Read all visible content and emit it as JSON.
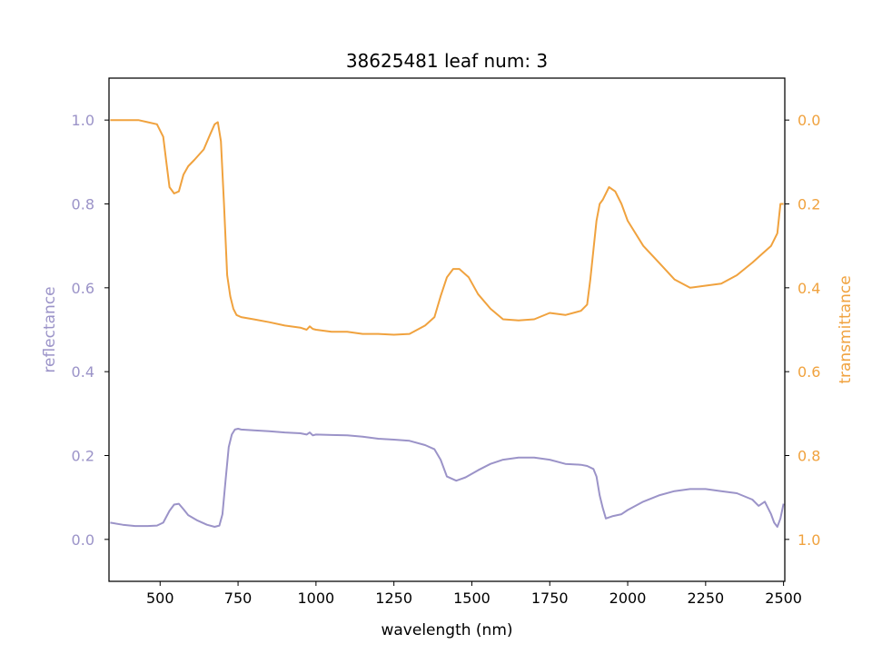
{
  "colors": {
    "reflectance": "#9b93c8",
    "transmittance": "#f0a23e",
    "axes": "#000000",
    "background": "#ffffff"
  },
  "chart_data": {
    "type": "line",
    "title": "38625481 leaf num: 3",
    "xlabel": "wavelength (nm)",
    "ylabel_left": "reflectance",
    "ylabel_right": "transmittance",
    "xlim": [
      336,
      2504
    ],
    "ylim_left": [
      -0.1,
      1.1
    ],
    "ylim_right": [
      1.1,
      -0.1
    ],
    "right_axis_inverted": true,
    "grid": false,
    "x_ticks": [
      500,
      750,
      1000,
      1250,
      1500,
      1750,
      2000,
      2250,
      2500
    ],
    "x_tick_labels": [
      "500",
      "750",
      "1000",
      "1250",
      "1500",
      "1750",
      "2000",
      "2250",
      "2500"
    ],
    "y_left_ticks": [
      0.0,
      0.2,
      0.4,
      0.6,
      0.8,
      1.0
    ],
    "y_left_tick_labels": [
      "0.0",
      "0.2",
      "0.4",
      "0.6",
      "0.8",
      "1.0"
    ],
    "y_right_ticks": [
      0.0,
      0.2,
      0.4,
      0.6,
      0.8,
      1.0
    ],
    "y_right_tick_labels": [
      "0.0",
      "0.2",
      "0.4",
      "0.6",
      "0.8",
      "1.0"
    ],
    "series": [
      {
        "axis": "left",
        "x": [
          340,
          380,
          420,
          460,
          490,
          510,
          530,
          545,
          560,
          575,
          590,
          620,
          650,
          675,
          690,
          700,
          710,
          720,
          730,
          740,
          750,
          760,
          800,
          850,
          900,
          950,
          970,
          980,
          990,
          1000,
          1050,
          1100,
          1150,
          1200,
          1250,
          1300,
          1350,
          1380,
          1400,
          1420,
          1450,
          1480,
          1520,
          1560,
          1600,
          1650,
          1700,
          1750,
          1800,
          1850,
          1870,
          1890,
          1900,
          1910,
          1920,
          1930,
          1950,
          1980,
          2000,
          2050,
          2100,
          2150,
          2200,
          2250,
          2300,
          2350,
          2400,
          2420,
          2440,
          2460,
          2470,
          2480,
          2490,
          2500
        ],
        "y": [
          0.04,
          0.035,
          0.032,
          0.032,
          0.033,
          0.04,
          0.068,
          0.083,
          0.085,
          0.072,
          0.058,
          0.045,
          0.035,
          0.03,
          0.033,
          0.06,
          0.14,
          0.22,
          0.25,
          0.262,
          0.264,
          0.262,
          0.26,
          0.258,
          0.255,
          0.253,
          0.25,
          0.255,
          0.248,
          0.25,
          0.249,
          0.248,
          0.245,
          0.24,
          0.238,
          0.235,
          0.225,
          0.215,
          0.19,
          0.15,
          0.14,
          0.148,
          0.165,
          0.18,
          0.19,
          0.195,
          0.195,
          0.19,
          0.18,
          0.178,
          0.175,
          0.168,
          0.15,
          0.105,
          0.075,
          0.05,
          0.055,
          0.06,
          0.07,
          0.09,
          0.105,
          0.115,
          0.12,
          0.12,
          0.115,
          0.11,
          0.095,
          0.08,
          0.09,
          0.06,
          0.04,
          0.03,
          0.05,
          0.085
        ]
      },
      {
        "axis": "right",
        "x": [
          340,
          360,
          400,
          430,
          460,
          490,
          510,
          520,
          530,
          545,
          560,
          575,
          590,
          610,
          640,
          660,
          675,
          685,
          695,
          705,
          715,
          725,
          735,
          745,
          760,
          800,
          850,
          900,
          950,
          970,
          980,
          990,
          1000,
          1050,
          1100,
          1150,
          1200,
          1250,
          1300,
          1350,
          1380,
          1400,
          1420,
          1440,
          1460,
          1490,
          1520,
          1560,
          1600,
          1650,
          1700,
          1750,
          1800,
          1850,
          1870,
          1880,
          1890,
          1900,
          1910,
          1920,
          1940,
          1960,
          1980,
          2000,
          2050,
          2100,
          2150,
          2200,
          2250,
          2300,
          2350,
          2400,
          2430,
          2460,
          2480,
          2490,
          2500
        ],
        "y": [
          0.0,
          0.0,
          0.0,
          0.0,
          0.005,
          0.01,
          0.04,
          0.1,
          0.16,
          0.175,
          0.17,
          0.13,
          0.11,
          0.095,
          0.07,
          0.035,
          0.01,
          0.005,
          0.05,
          0.2,
          0.37,
          0.42,
          0.45,
          0.465,
          0.47,
          0.475,
          0.482,
          0.49,
          0.495,
          0.5,
          0.492,
          0.498,
          0.5,
          0.505,
          0.505,
          0.51,
          0.51,
          0.512,
          0.51,
          0.49,
          0.47,
          0.42,
          0.375,
          0.355,
          0.355,
          0.375,
          0.415,
          0.45,
          0.475,
          0.478,
          0.475,
          0.46,
          0.465,
          0.455,
          0.44,
          0.38,
          0.31,
          0.24,
          0.2,
          0.19,
          0.16,
          0.17,
          0.2,
          0.24,
          0.3,
          0.34,
          0.38,
          0.4,
          0.395,
          0.39,
          0.37,
          0.34,
          0.32,
          0.3,
          0.27,
          0.2,
          0.2
        ]
      }
    ]
  }
}
